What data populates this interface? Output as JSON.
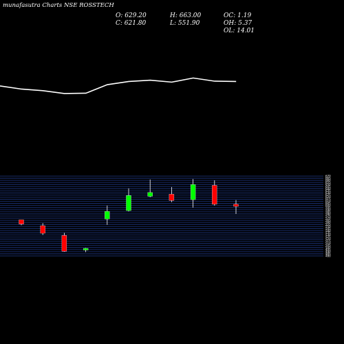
{
  "title": "munafasutra Charts NSE ROSSTECH",
  "stats": {
    "open": "O: 629.20",
    "close": "C: 621.80",
    "high": "H: 663.00",
    "low": "L: 551.90",
    "oc": "OC: 1.19",
    "oh": "OH: 5.37",
    "ol": "OL: 14.01"
  },
  "colors": {
    "background": "#000000",
    "up": "#00ff00",
    "down": "#ff0000",
    "line": "#ffffff",
    "grid": "#1f3a8a"
  },
  "chart_data": {
    "type": "candlestick",
    "title": "munafasutra Charts NSE ROSSTECH",
    "ylim": [
      480,
      670
    ],
    "grid": true,
    "y_ticks": [
      670,
      665,
      660,
      655,
      650,
      645,
      640,
      635,
      630,
      625,
      620,
      615,
      610,
      605,
      600,
      595,
      590,
      585,
      580,
      575,
      570,
      565,
      560,
      555,
      550,
      545,
      540,
      535,
      530,
      525,
      520,
      515,
      510,
      505,
      500,
      495,
      490,
      485,
      480
    ],
    "candles": [
      {
        "open": 566,
        "close": 556,
        "high": 566,
        "low": 553,
        "direction": "down"
      },
      {
        "open": 552,
        "close": 534,
        "high": 558,
        "low": 530,
        "direction": "down"
      },
      {
        "open": 529,
        "close": 491,
        "high": 535,
        "low": 490,
        "direction": "down"
      },
      {
        "open": 494,
        "close": 498,
        "high": 499,
        "low": 489,
        "direction": "up"
      },
      {
        "open": 568,
        "close": 586,
        "high": 600,
        "low": 554,
        "direction": "up"
      },
      {
        "open": 588,
        "close": 624,
        "high": 641,
        "low": 586,
        "direction": "up"
      },
      {
        "open": 622,
        "close": 631,
        "high": 662,
        "low": 620,
        "direction": "up"
      },
      {
        "open": 627,
        "close": 612,
        "high": 644,
        "low": 608,
        "direction": "down"
      },
      {
        "open": 614,
        "close": 650,
        "high": 663,
        "low": 595,
        "direction": "up"
      },
      {
        "open": 648,
        "close": 603,
        "high": 660,
        "low": 600,
        "direction": "down"
      },
      {
        "open": 603,
        "close": 598,
        "high": 613,
        "low": 580,
        "direction": "down"
      }
    ],
    "line_series": [
      0.28,
      0.38,
      0.43,
      0.52,
      0.51,
      0.24,
      0.14,
      0.1,
      0.16,
      0.03,
      0.13,
      0.14
    ]
  }
}
